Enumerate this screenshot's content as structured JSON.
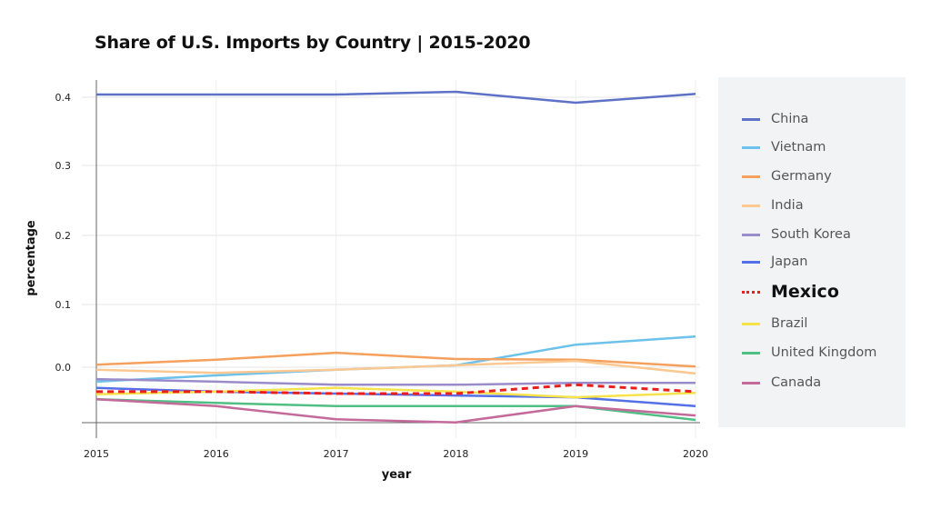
{
  "chart_data": {
    "type": "line",
    "title": "Share of U.S. Imports by Country | 2015-2020",
    "xlabel": "year",
    "ylabel": "percentage",
    "x": [
      2015,
      2016,
      2017,
      2018,
      2019,
      2020
    ],
    "yticks": [
      0.4,
      0.3,
      0.2,
      0.1,
      0.0
    ],
    "ytick_labels": [
      "0.4",
      "0.3",
      "0.2",
      "0.1",
      "0.0"
    ],
    "xtick_labels": [
      "2015",
      "2016",
      "2017",
      "2018",
      "2019",
      "2020"
    ],
    "grid": true,
    "legend_placement": "right",
    "series": [
      {
        "name": "China",
        "color": "#5d72c6",
        "values": [
          0.404,
          0.404,
          0.404,
          0.408,
          0.392,
          0.405
        ]
      },
      {
        "name": "Vietnam",
        "color": "#6cc2ea",
        "values": [
          -0.023,
          -0.013,
          -0.004,
          0.003,
          0.036,
          0.049
        ]
      },
      {
        "name": "Germany",
        "color": "#f5a05c",
        "values": [
          0.004,
          0.012,
          0.023,
          0.013,
          0.012,
          0.001
        ]
      },
      {
        "name": "India",
        "color": "#fbc892",
        "values": [
          -0.004,
          -0.009,
          -0.004,
          0.003,
          0.01,
          -0.01
        ]
      },
      {
        "name": "South Korea",
        "color": "#9a8ccb",
        "values": [
          -0.019,
          -0.023,
          -0.028,
          -0.028,
          -0.025,
          -0.025
        ]
      },
      {
        "name": "Japan",
        "color": "#5470e6",
        "values": [
          -0.033,
          -0.039,
          -0.042,
          -0.045,
          -0.048,
          -0.062
        ]
      },
      {
        "name": "Mexico",
        "color": "#e8201c",
        "dashed": true,
        "highlight": true,
        "values": [
          -0.039,
          -0.039,
          -0.042,
          -0.042,
          -0.028,
          -0.039
        ]
      },
      {
        "name": "Brazil",
        "color": "#f6e24a",
        "values": [
          -0.043,
          -0.039,
          -0.033,
          -0.039,
          -0.048,
          -0.041
        ]
      },
      {
        "name": "United Kingdom",
        "color": "#4fbf84",
        "values": [
          -0.051,
          -0.057,
          -0.062,
          -0.062,
          -0.062,
          -0.084
        ]
      },
      {
        "name": "Canada",
        "color": "#c46a9a",
        "values": [
          -0.051,
          -0.062,
          -0.083,
          -0.088,
          -0.062,
          -0.077
        ]
      }
    ]
  }
}
